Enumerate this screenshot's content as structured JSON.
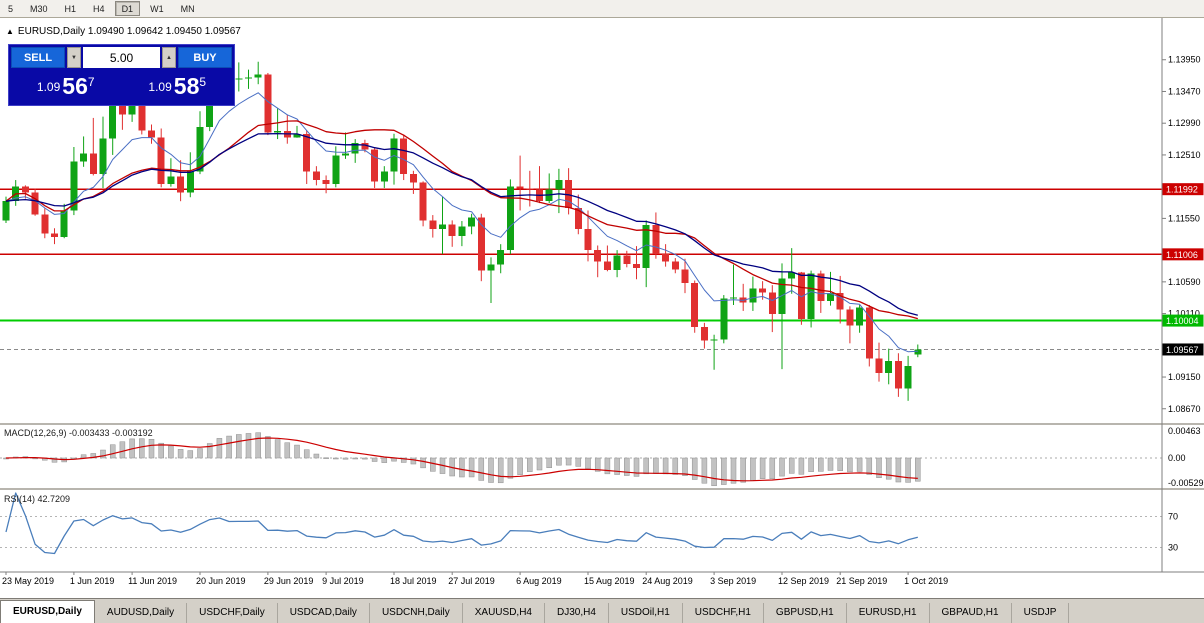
{
  "toolbar": {
    "timeframes": [
      {
        "label": "5",
        "active": false
      },
      {
        "label": "M30",
        "active": false
      },
      {
        "label": "H1",
        "active": false
      },
      {
        "label": "H4",
        "active": false
      },
      {
        "label": "D1",
        "active": true
      },
      {
        "label": "W1",
        "active": false
      },
      {
        "label": "MN",
        "active": false
      }
    ]
  },
  "chart_header": {
    "collapse_arrow": "▲",
    "title": "EURUSD,Daily  1.09490 1.09642 1.09450 1.09567"
  },
  "trade_panel": {
    "sell_label": "SELL",
    "buy_label": "BUY",
    "volume_value": "5.00",
    "spin_down_icon": "▼",
    "spin_up_icon": "▲",
    "bid": {
      "prefix": "1.09",
      "big": "56",
      "sup": "7"
    },
    "ask": {
      "prefix": "1.09",
      "big": "58",
      "sup": "5"
    }
  },
  "indicator_labels": {
    "macd": "MACD(12,26,9) -0.003433 -0.003192",
    "rsi": "RSI(14) 42.7209"
  },
  "chart_data": {
    "type": "candlestick",
    "symbol": "EURUSD",
    "timeframe": "Daily",
    "ylim": [
      1.085,
      1.144
    ],
    "colors": {
      "up": "#0FA315",
      "down": "#E03030",
      "background": "#FFFFFF",
      "axis_text": "#000000"
    },
    "price_axis_ticks": [
      "1.13950",
      "1.13470",
      "1.12990",
      "1.12510",
      "1.12030",
      "1.11550",
      "1.11070",
      "1.10590",
      "1.10110",
      "1.09630",
      "1.09150",
      "1.08670"
    ],
    "hlines": [
      {
        "price": 1.11992,
        "label": "1.11992",
        "line_color": "#CC0000",
        "line_width": 1.4,
        "dash": "",
        "tag_bg": "#CC0000",
        "tag_fg": "#FFFFFF"
      },
      {
        "price": 1.11006,
        "label": "1.11006",
        "line_color": "#CC0000",
        "line_width": 1.4,
        "dash": "",
        "tag_bg": "#CC0000",
        "tag_fg": "#FFFFFF"
      },
      {
        "price": 1.10004,
        "label": "1.10004",
        "line_color": "#00CC00",
        "line_width": 2,
        "dash": "",
        "tag_bg": "#00B800",
        "tag_fg": "#FFFFFF"
      },
      {
        "price": 1.09567,
        "label": "1.09567",
        "line_color": "#8A8A8A",
        "line_width": 1,
        "dash": "4,3",
        "tag_bg": "#000000",
        "tag_fg": "#FFFFFF"
      }
    ],
    "moving_averages": [
      {
        "period": 8,
        "method": "ema",
        "color": "#4A6FC4",
        "width": 1
      },
      {
        "period": 20,
        "method": "sma",
        "color": "#C00000",
        "width": 1.3
      },
      {
        "period": 26,
        "method": "ema",
        "color": "#000080",
        "width": 1.3
      }
    ],
    "macd": {
      "params": [
        12,
        26,
        9
      ],
      "hist_color": "#C2C2C2",
      "hist_stroke": "#909090",
      "signal_color": "#CC0000",
      "axis": [
        {
          "label": "0.00463",
          "value": 0.00463
        },
        {
          "label": "0.00",
          "value": 0
        },
        {
          "label": "-0.00529",
          "value": -0.00529
        }
      ]
    },
    "rsi": {
      "period": 14,
      "color": "#4A7EBB",
      "levels": [
        {
          "label": "70",
          "value": 70
        },
        {
          "label": "30",
          "value": 30
        }
      ]
    },
    "x_labels": [
      {
        "bar": 0,
        "text": "23 May 2019"
      },
      {
        "bar": 7,
        "text": "1 Jun 2019"
      },
      {
        "bar": 13,
        "text": "11 Jun 2019"
      },
      {
        "bar": 20,
        "text": "20 Jun 2019"
      },
      {
        "bar": 27,
        "text": "29 Jun 2019"
      },
      {
        "bar": 33,
        "text": "9 Jul 2019"
      },
      {
        "bar": 40,
        "text": "18 Jul 2019"
      },
      {
        "bar": 46,
        "text": "27 Jul 2019"
      },
      {
        "bar": 53,
        "text": "6 Aug 2019"
      },
      {
        "bar": 60,
        "text": "15 Aug 2019"
      },
      {
        "bar": 66,
        "text": "24 Aug 2019"
      },
      {
        "bar": 73,
        "text": "3 Sep 2019"
      },
      {
        "bar": 80,
        "text": "12 Sep 2019"
      },
      {
        "bar": 86,
        "text": "21 Sep 2019"
      },
      {
        "bar": 93,
        "text": "1 Oct 2019"
      }
    ],
    "ohlc": [
      [
        1.1152,
        1.1188,
        1.1148,
        1.1181
      ],
      [
        1.1181,
        1.1213,
        1.1174,
        1.1203
      ],
      [
        1.1203,
        1.1205,
        1.1185,
        1.1194
      ],
      [
        1.1194,
        1.12,
        1.1159,
        1.1161
      ],
      [
        1.1161,
        1.117,
        1.1125,
        1.1132
      ],
      [
        1.1132,
        1.114,
        1.1116,
        1.1127
      ],
      [
        1.1127,
        1.1177,
        1.1125,
        1.1167
      ],
      [
        1.1167,
        1.1263,
        1.116,
        1.1241
      ],
      [
        1.1241,
        1.1279,
        1.1233,
        1.1253
      ],
      [
        1.1253,
        1.1307,
        1.122,
        1.1222
      ],
      [
        1.1222,
        1.1309,
        1.1201,
        1.1276
      ],
      [
        1.1276,
        1.1348,
        1.1251,
        1.1334
      ],
      [
        1.1334,
        1.1335,
        1.1289,
        1.1312
      ],
      [
        1.1312,
        1.1338,
        1.1301,
        1.1327
      ],
      [
        1.1327,
        1.1344,
        1.1282,
        1.1288
      ],
      [
        1.1288,
        1.1297,
        1.1268,
        1.1277
      ],
      [
        1.1277,
        1.1291,
        1.1202,
        1.1207
      ],
      [
        1.1207,
        1.1246,
        1.1203,
        1.1218
      ],
      [
        1.1218,
        1.1243,
        1.1181,
        1.1194
      ],
      [
        1.1194,
        1.1255,
        1.1187,
        1.1226
      ],
      [
        1.1226,
        1.1317,
        1.1222,
        1.1293
      ],
      [
        1.1293,
        1.1378,
        1.1287,
        1.1369
      ],
      [
        1.1369,
        1.1406,
        1.1362,
        1.1399
      ],
      [
        1.1399,
        1.1412,
        1.136,
        1.1366
      ],
      [
        1.1366,
        1.1391,
        1.1347,
        1.1367
      ],
      [
        1.1367,
        1.138,
        1.1351,
        1.1368
      ],
      [
        1.1368,
        1.1392,
        1.1358,
        1.1373
      ],
      [
        1.1373,
        1.1375,
        1.1281,
        1.1285
      ],
      [
        1.1285,
        1.1322,
        1.1275,
        1.1287
      ],
      [
        1.1287,
        1.1312,
        1.1268,
        1.1277
      ],
      [
        1.1277,
        1.1295,
        1.1277,
        1.1283
      ],
      [
        1.1283,
        1.1288,
        1.1207,
        1.1226
      ],
      [
        1.1226,
        1.1234,
        1.1205,
        1.1213
      ],
      [
        1.1213,
        1.122,
        1.1193,
        1.1207
      ],
      [
        1.1207,
        1.1264,
        1.1202,
        1.125
      ],
      [
        1.125,
        1.1285,
        1.1245,
        1.1253
      ],
      [
        1.1253,
        1.1275,
        1.1239,
        1.1269
      ],
      [
        1.1269,
        1.1274,
        1.1255,
        1.1259
      ],
      [
        1.1259,
        1.1263,
        1.1201,
        1.1211
      ],
      [
        1.1211,
        1.1234,
        1.1201,
        1.1226
      ],
      [
        1.1226,
        1.1283,
        1.1206,
        1.1276
      ],
      [
        1.1276,
        1.1282,
        1.1213,
        1.1222
      ],
      [
        1.1222,
        1.1227,
        1.1192,
        1.1209
      ],
      [
        1.1209,
        1.1211,
        1.1143,
        1.1152
      ],
      [
        1.1152,
        1.116,
        1.1126,
        1.1139
      ],
      [
        1.1139,
        1.1188,
        1.1101,
        1.1146
      ],
      [
        1.1146,
        1.1152,
        1.1112,
        1.1128
      ],
      [
        1.1128,
        1.1151,
        1.1113,
        1.1143
      ],
      [
        1.1143,
        1.1162,
        1.1131,
        1.1156
      ],
      [
        1.1156,
        1.1162,
        1.106,
        1.1076
      ],
      [
        1.1076,
        1.1096,
        1.1027,
        1.1085
      ],
      [
        1.1085,
        1.1116,
        1.1072,
        1.1107
      ],
      [
        1.1107,
        1.1214,
        1.1101,
        1.1203
      ],
      [
        1.1203,
        1.125,
        1.1167,
        1.12
      ],
      [
        1.12,
        1.1227,
        1.1173,
        1.1199
      ],
      [
        1.1199,
        1.1234,
        1.1178,
        1.1181
      ],
      [
        1.1181,
        1.1223,
        1.1178,
        1.1199
      ],
      [
        1.1199,
        1.123,
        1.1163,
        1.1213
      ],
      [
        1.1213,
        1.1231,
        1.1161,
        1.1171
      ],
      [
        1.1171,
        1.1191,
        1.1131,
        1.1139
      ],
      [
        1.1139,
        1.1167,
        1.109,
        1.1107
      ],
      [
        1.1107,
        1.1114,
        1.1066,
        1.109
      ],
      [
        1.109,
        1.1114,
        1.1075,
        1.1077
      ],
      [
        1.1077,
        1.1107,
        1.1066,
        1.1099
      ],
      [
        1.1099,
        1.1106,
        1.1081,
        1.1086
      ],
      [
        1.1086,
        1.1113,
        1.1063,
        1.108
      ],
      [
        1.108,
        1.1152,
        1.1051,
        1.1145
      ],
      [
        1.1145,
        1.1164,
        1.1094,
        1.1101
      ],
      [
        1.1101,
        1.1116,
        1.1082,
        1.109
      ],
      [
        1.109,
        1.1095,
        1.1072,
        1.1078
      ],
      [
        1.1078,
        1.1094,
        1.1042,
        1.1057
      ],
      [
        1.1057,
        1.1061,
        1.0982,
        1.0991
      ],
      [
        1.0991,
        1.0997,
        1.0958,
        1.097
      ],
      [
        1.097,
        1.0979,
        1.0926,
        1.0972
      ],
      [
        1.0972,
        1.1039,
        1.0966,
        1.1034
      ],
      [
        1.1034,
        1.1085,
        1.1024,
        1.1035
      ],
      [
        1.1035,
        1.1056,
        1.1015,
        1.1028
      ],
      [
        1.1028,
        1.1067,
        1.1015,
        1.1049
      ],
      [
        1.1049,
        1.106,
        1.1032,
        1.1043
      ],
      [
        1.1043,
        1.1054,
        1.0983,
        1.101
      ],
      [
        1.101,
        1.1087,
        1.0927,
        1.1064
      ],
      [
        1.1064,
        1.111,
        1.1041,
        1.1073
      ],
      [
        1.1073,
        1.1074,
        1.0994,
        1.1003
      ],
      [
        1.1003,
        1.1076,
        1.099,
        1.1072
      ],
      [
        1.1072,
        1.1076,
        1.1012,
        1.103
      ],
      [
        1.103,
        1.1074,
        1.1023,
        1.1042
      ],
      [
        1.1042,
        1.1068,
        1.0996,
        1.1017
      ],
      [
        1.1017,
        1.1022,
        1.0966,
        1.0993
      ],
      [
        1.0993,
        1.1024,
        1.0982,
        1.102
      ],
      [
        1.102,
        1.1024,
        1.0931,
        1.0943
      ],
      [
        1.0943,
        1.0967,
        1.0908,
        1.0921
      ],
      [
        1.0921,
        1.0958,
        1.0904,
        1.0939
      ],
      [
        1.0939,
        1.0951,
        1.0885,
        1.0898
      ],
      [
        1.0898,
        1.0947,
        1.0879,
        1.0932
      ],
      [
        1.0949,
        1.09642,
        1.0945,
        1.09567
      ]
    ]
  },
  "tabs": {
    "items": [
      {
        "label": "EURUSD,Daily",
        "active": true
      },
      {
        "label": "AUDUSD,Daily",
        "active": false
      },
      {
        "label": "USDCHF,Daily",
        "active": false
      },
      {
        "label": "USDCAD,Daily",
        "active": false
      },
      {
        "label": "USDCNH,Daily",
        "active": false
      },
      {
        "label": "XAUUSD,H4",
        "active": false
      },
      {
        "label": "DJ30,H4",
        "active": false
      },
      {
        "label": "USDOil,H1",
        "active": false
      },
      {
        "label": "USDCHF,H1",
        "active": false
      },
      {
        "label": "GBPUSD,H1",
        "active": false
      },
      {
        "label": "EURUSD,H1",
        "active": false
      },
      {
        "label": "GBPAUD,H1",
        "active": false
      },
      {
        "label": "USDJP",
        "active": false
      }
    ]
  }
}
